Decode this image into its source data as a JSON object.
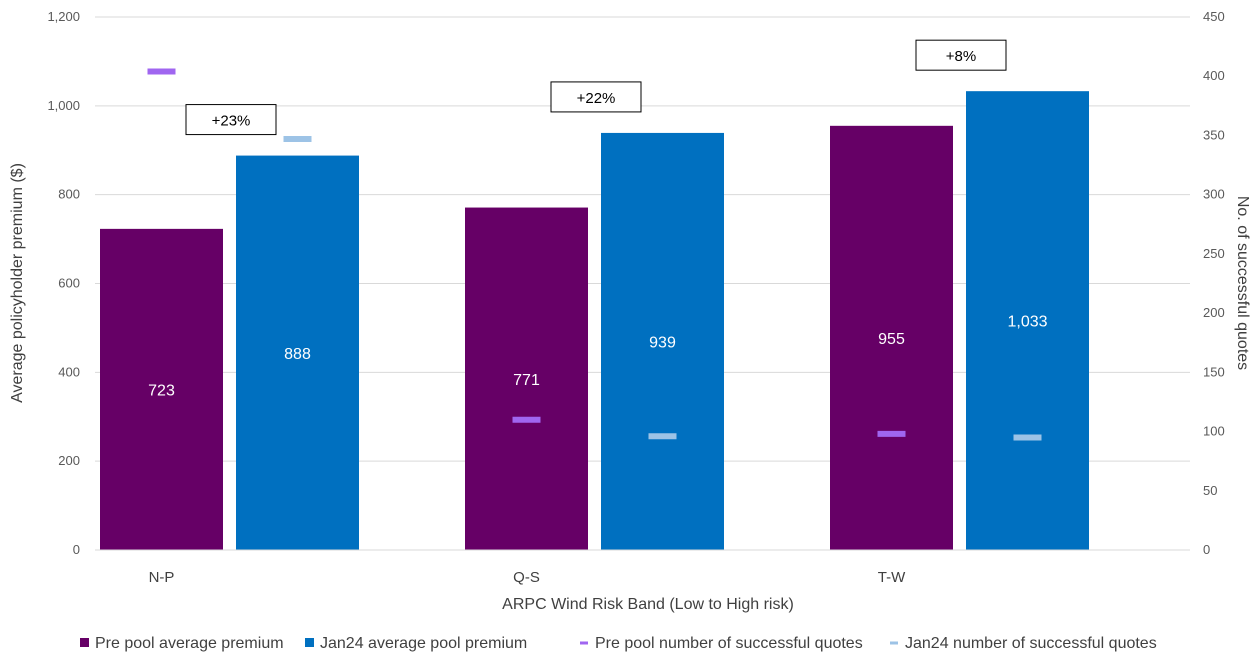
{
  "chart_data": {
    "type": "bar",
    "categories": [
      "N-P",
      "Q-S",
      "T-W"
    ],
    "xlabel": "ARPC Wind Risk Band (Low to High risk)",
    "ylabel": "Average policyholder premium ($)",
    "y2label": "No. of successful quotes",
    "ylim": [
      0,
      1200
    ],
    "y2lim": [
      0,
      450
    ],
    "y_ticks": [
      "0",
      "200",
      "400",
      "600",
      "800",
      "1,000",
      "1,200"
    ],
    "y2_ticks": [
      "0",
      "50",
      "100",
      "150",
      "200",
      "250",
      "300",
      "350",
      "400",
      "450"
    ],
    "grid": true,
    "legend_position": "bottom",
    "series": [
      {
        "name": "Pre pool average premium",
        "kind": "bar",
        "axis": "left",
        "color": "#660066",
        "values": [
          723,
          771,
          955
        ],
        "labels": [
          "723",
          "771",
          "955"
        ]
      },
      {
        "name": "Jan24 average pool premium",
        "kind": "bar",
        "axis": "left",
        "color": "#0070C0",
        "values": [
          888,
          939,
          1033
        ],
        "labels": [
          "888",
          "939",
          "1,033"
        ]
      },
      {
        "name": "Pre pool number of successful quotes",
        "kind": "marker",
        "axis": "right",
        "color": "#A066F0",
        "values": [
          404,
          110,
          98
        ]
      },
      {
        "name": "Jan24 number of successful quotes",
        "kind": "marker",
        "axis": "right",
        "color": "#9DC3E6",
        "values": [
          347,
          96,
          95
        ]
      }
    ],
    "annotations": [
      "+23%",
      "+22%",
      "+8%"
    ]
  }
}
